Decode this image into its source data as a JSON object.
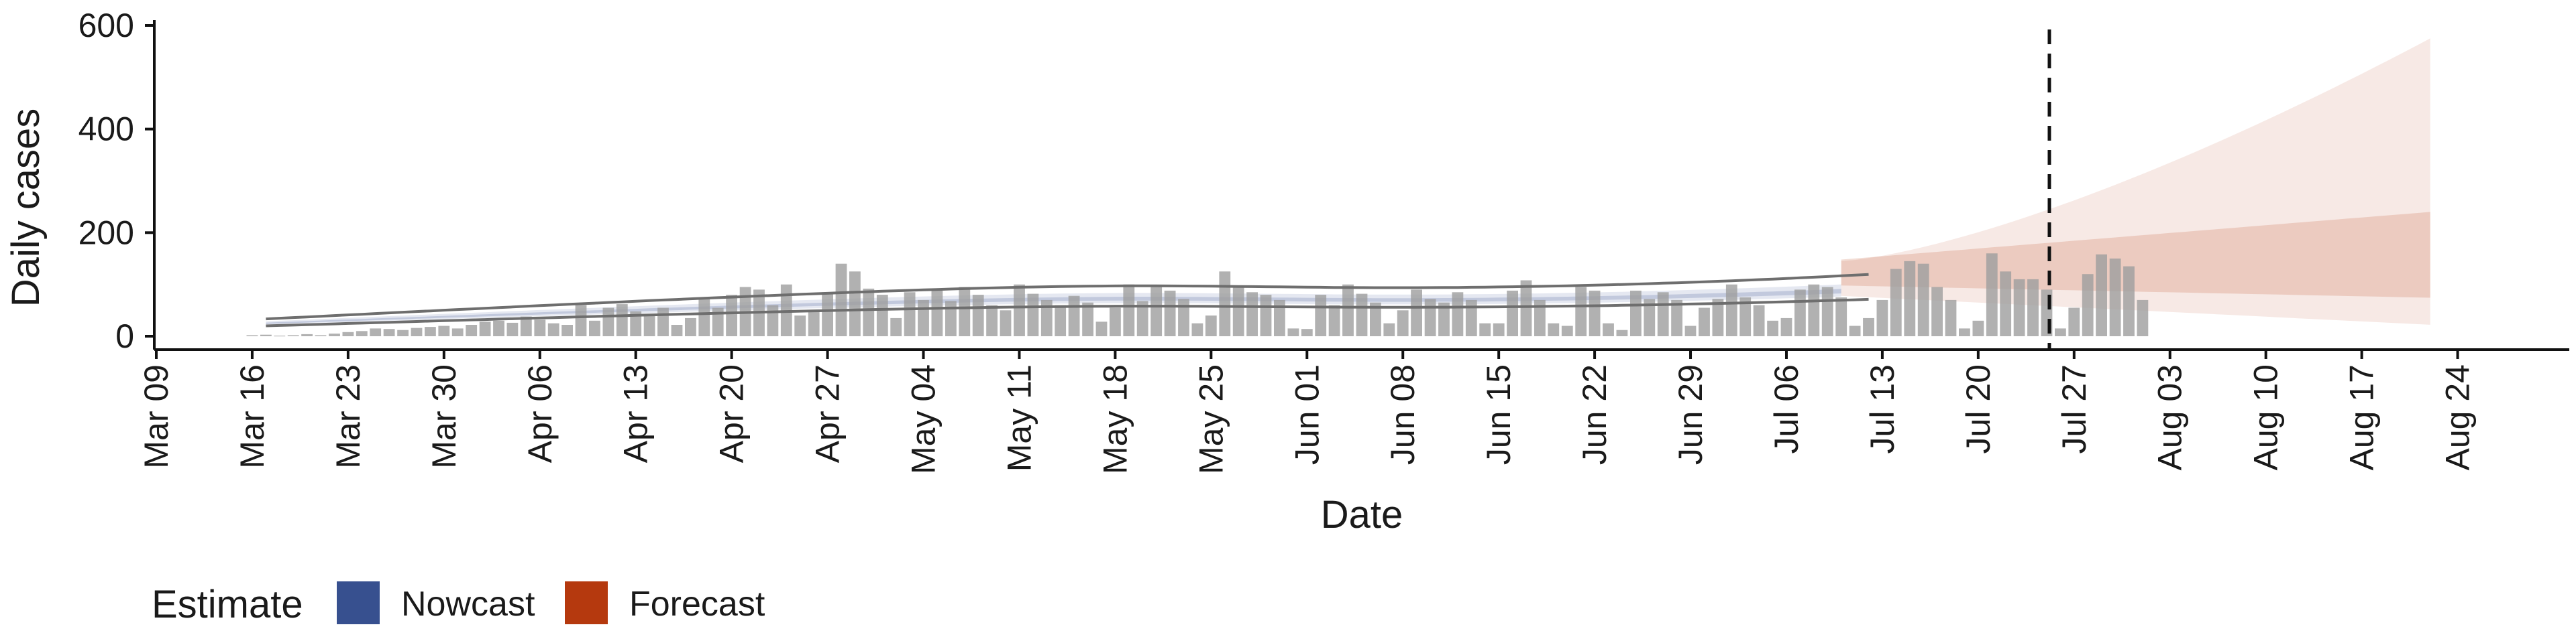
{
  "chart_data": {
    "type": "bar",
    "xlabel": "Date",
    "ylabel": "Daily cases",
    "ylim": [
      0,
      600
    ],
    "yticks": [
      0,
      200,
      400,
      600
    ],
    "x_start": "2020-03-09",
    "x_end": "2020-08-31",
    "x_tick_labels": [
      "Mar 09",
      "Mar 16",
      "Mar 23",
      "Mar 30",
      "Apr 06",
      "Apr 13",
      "Apr 20",
      "Apr 27",
      "May 04",
      "May 11",
      "May 18",
      "May 25",
      "Jun 01",
      "Jun 08",
      "Jun 15",
      "Jun 22",
      "Jun 29",
      "Jul 06",
      "Jul 13",
      "Jul 20",
      "Jul 27",
      "Aug 03",
      "Aug 10",
      "Aug 17",
      "Aug 24"
    ],
    "cases_start": "2020-03-16",
    "daily_cases": [
      2,
      3,
      1,
      2,
      4,
      2,
      5,
      8,
      10,
      15,
      14,
      12,
      16,
      18,
      20,
      15,
      22,
      28,
      30,
      26,
      38,
      32,
      25,
      22,
      60,
      30,
      55,
      62,
      48,
      42,
      55,
      22,
      35,
      72,
      55,
      80,
      95,
      90,
      60,
      100,
      40,
      50,
      85,
      140,
      125,
      92,
      80,
      35,
      85,
      70,
      88,
      68,
      95,
      80,
      60,
      50,
      100,
      82,
      70,
      60,
      78,
      65,
      28,
      55,
      100,
      68,
      95,
      88,
      72,
      25,
      40,
      125,
      95,
      85,
      80,
      70,
      15,
      14,
      80,
      60,
      100,
      82,
      65,
      25,
      50,
      90,
      72,
      65,
      85,
      70,
      25,
      25,
      88,
      108,
      70,
      25,
      20,
      95,
      88,
      25,
      12,
      88,
      72,
      85,
      70,
      20,
      55,
      72,
      100,
      75,
      60,
      30,
      35,
      90,
      100,
      95,
      75,
      20,
      35,
      70,
      130,
      145,
      140,
      95,
      70,
      15,
      30,
      160,
      125,
      110,
      110,
      90,
      15,
      55,
      120,
      158,
      150,
      135,
      70
    ],
    "estimate_start": "2020-03-17",
    "nowcast_end": "2020-07-10",
    "forecast_end": "2020-08-22",
    "median_estimate": [
      25,
      26,
      26.9,
      27.8,
      28.8,
      29.8,
      30.8,
      31.7,
      32.7,
      33.7,
      34.6,
      35.6,
      36.5,
      37.5,
      38.5,
      39.4,
      40.3,
      41.3,
      42.2,
      43.1,
      44.1,
      45,
      45.9,
      46.8,
      47.7,
      48.6,
      49.5,
      50.4,
      51.3,
      52.2,
      53,
      53.9,
      54.7,
      55.6,
      56.4,
      57.2,
      58,
      58.8,
      59.6,
      60.4,
      61.2,
      61.9,
      62.7,
      63.4,
      64.1,
      64.8,
      65.5,
      66.1,
      66.8,
      67.4,
      68,
      68.6,
      69.1,
      69.6,
      70.1,
      70.5,
      70.9,
      71.3,
      71.6,
      71.9,
      72.1,
      72.3,
      72.5,
      72.6,
      72.6,
      72.6,
      72.5,
      72.4,
      72.3,
      72.1,
      71.9,
      71.7,
      71.5,
      71.3,
      71.1,
      70.9,
      70.7,
      70.5,
      70.3,
      70.2,
      70.1,
      70,
      70,
      70,
      70,
      70.1,
      70.2,
      70.3,
      70.5,
      70.7,
      71,
      71.3,
      71.6,
      71.9,
      72.3,
      72.7,
      73.1,
      73.6,
      74.1,
      74.6,
      75.2,
      75.8,
      76.4,
      77,
      77.7,
      78.4,
      79.1,
      79.9,
      80.7,
      81.5,
      82.3,
      83.2,
      84.1,
      85,
      86,
      87,
      88,
      89
    ],
    "forecast_median": [
      98,
      100,
      102,
      104,
      106,
      108,
      110,
      112,
      114,
      116,
      118,
      120,
      122,
      124,
      126,
      128,
      130,
      132,
      134,
      136,
      138,
      140,
      142,
      144,
      146,
      148,
      150,
      152,
      154,
      156,
      158,
      160,
      162,
      164,
      166,
      168,
      170,
      172,
      174,
      176,
      178,
      180,
      182,
      184
    ],
    "series": [
      {
        "name": "Nowcast",
        "color": "#37508f"
      },
      {
        "name": "Forecast",
        "color": "#b5390e"
      }
    ],
    "annotations": [
      {
        "type": "vline",
        "x": "2020-07-25",
        "style": "dashed"
      }
    ],
    "legend": {
      "title": "Estimate",
      "position": "bottom-left"
    }
  }
}
